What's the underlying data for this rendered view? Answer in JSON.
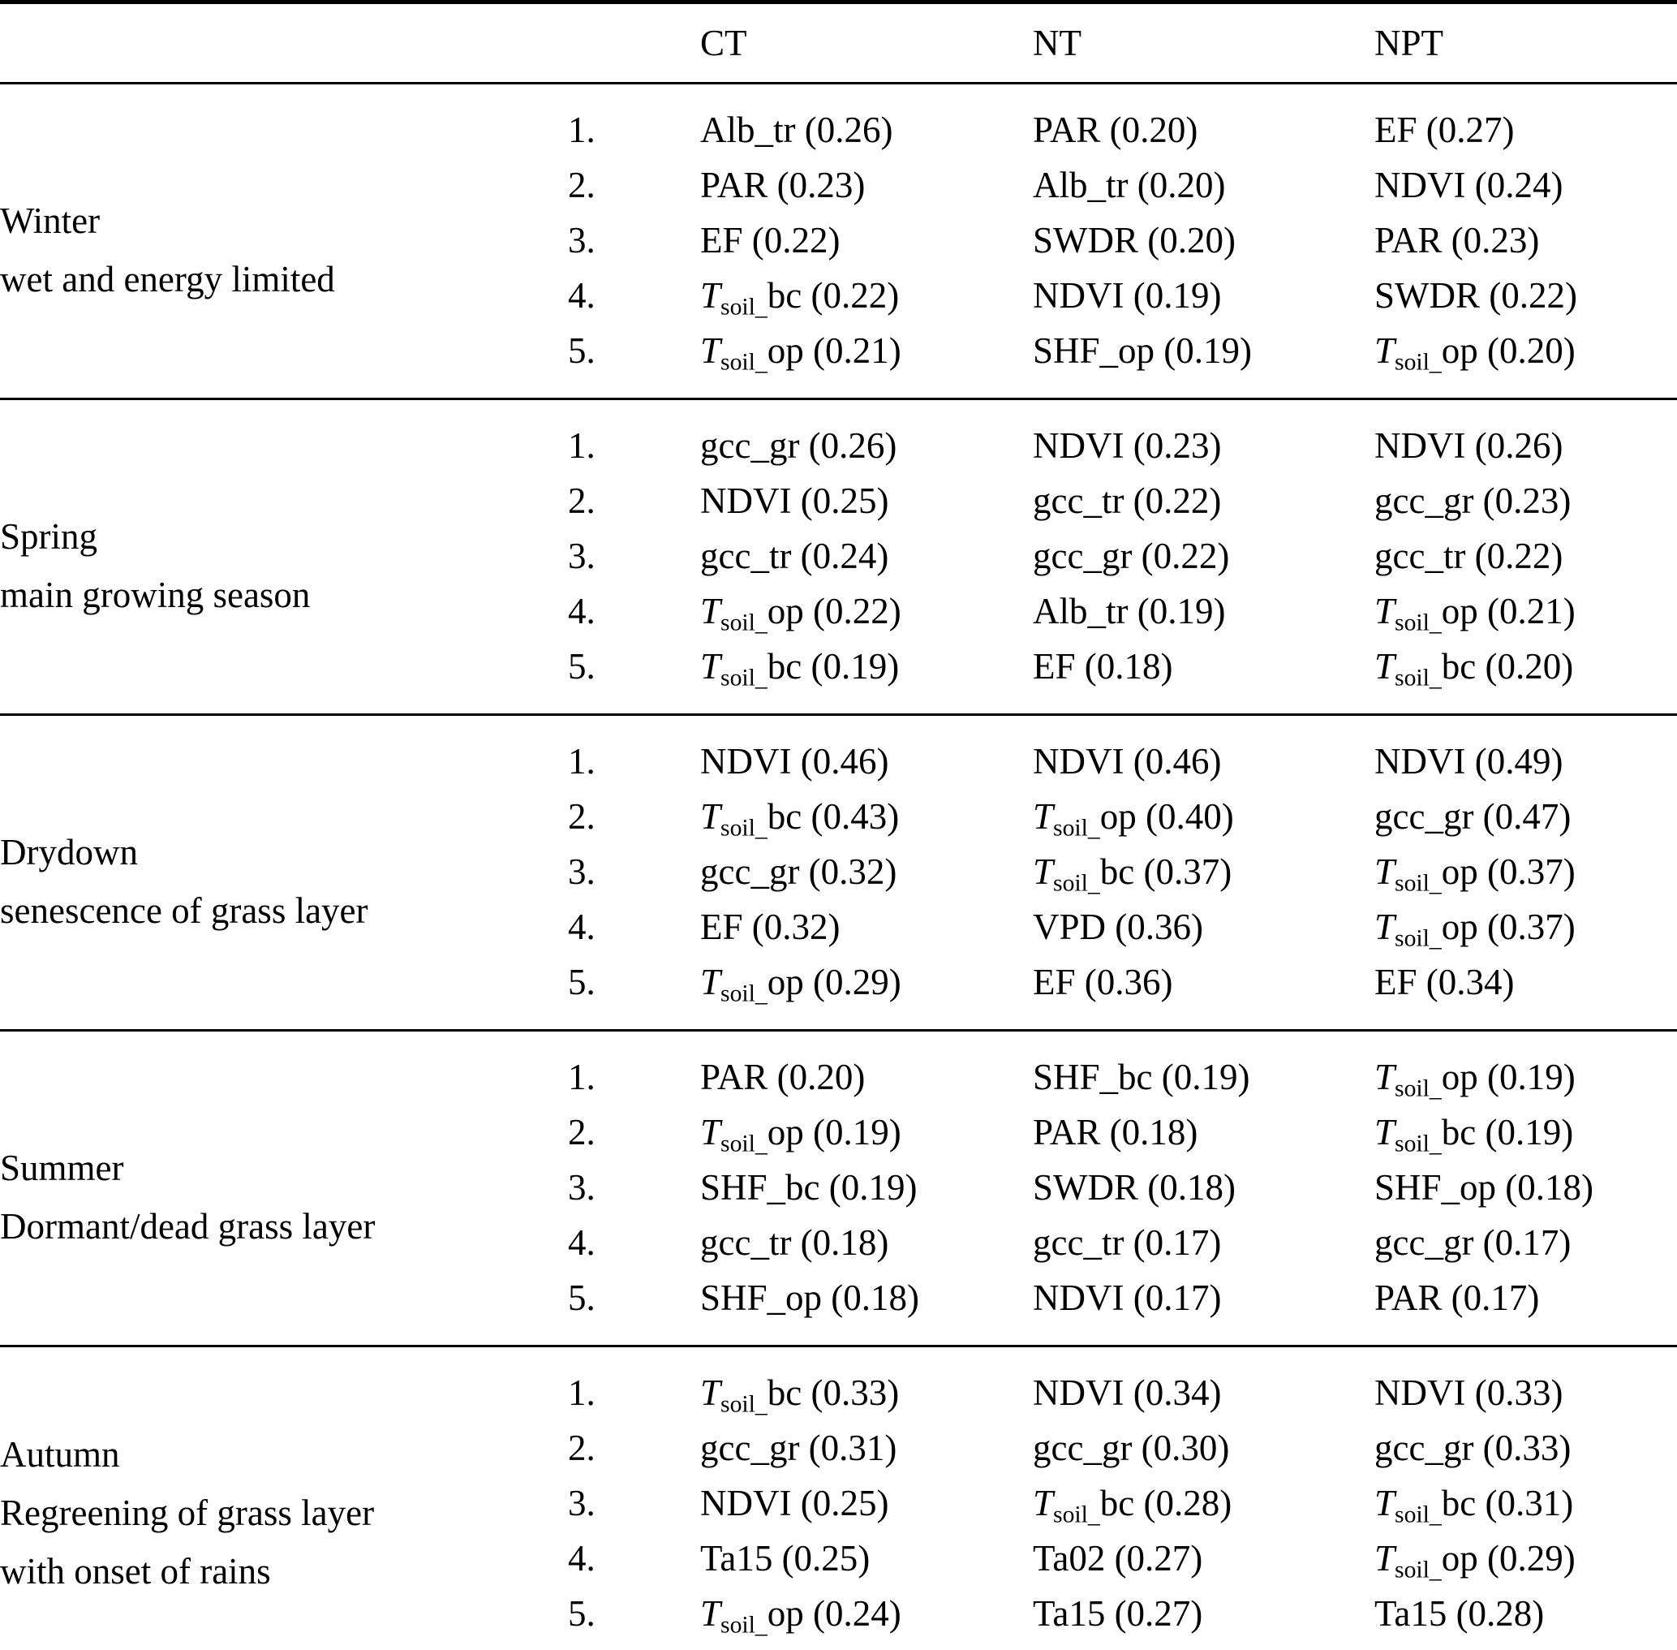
{
  "table": {
    "corner_label": "",
    "columns": [
      "CT",
      "NT",
      "NPT"
    ],
    "colors": {
      "text": "#000000",
      "background": "#ffffff",
      "rule": "#000000"
    },
    "sections": [
      {
        "season": "Winter",
        "description": [
          "wet and energy limited"
        ],
        "rows": [
          {
            "rank": "1.",
            "cells": [
              "Alb_tr (0.26)",
              "PAR (0.20)",
              "EF (0.27)"
            ]
          },
          {
            "rank": "2.",
            "cells": [
              "PAR (0.23)",
              "Alb_tr (0.20)",
              "NDVI (0.24)"
            ]
          },
          {
            "rank": "3.",
            "cells": [
              "EF (0.22)",
              "SWDR (0.20)",
              "PAR (0.23)"
            ]
          },
          {
            "rank": "4.",
            "cells": [
              "*T*_{soil_}bc (0.22)",
              "NDVI (0.19)",
              "SWDR (0.22)"
            ]
          },
          {
            "rank": "5.",
            "cells": [
              "*T*_{soil_}op (0.21)",
              "SHF_op (0.19)",
              "*T*_{soil_}op (0.20)"
            ]
          }
        ]
      },
      {
        "season": "Spring",
        "description": [
          "main growing season"
        ],
        "rows": [
          {
            "rank": "1.",
            "cells": [
              "gcc_gr (0.26)",
              "NDVI (0.23)",
              "NDVI (0.26)"
            ]
          },
          {
            "rank": "2.",
            "cells": [
              "NDVI (0.25)",
              "gcc_tr (0.22)",
              "gcc_gr (0.23)"
            ]
          },
          {
            "rank": "3.",
            "cells": [
              "gcc_tr (0.24)",
              "gcc_gr (0.22)",
              "gcc_tr (0.22)"
            ]
          },
          {
            "rank": "4.",
            "cells": [
              "*T*_{soil_}op (0.22)",
              "Alb_tr (0.19)",
              "*T*_{soil_}op (0.21)"
            ]
          },
          {
            "rank": "5.",
            "cells": [
              "*T*_{soil_}bc (0.19)",
              "EF (0.18)",
              "*T*_{soil_}bc (0.20)"
            ]
          }
        ]
      },
      {
        "season": "Drydown",
        "description": [
          "senescence of grass layer"
        ],
        "rows": [
          {
            "rank": "1.",
            "cells": [
              "NDVI (0.46)",
              "NDVI (0.46)",
              "NDVI (0.49)"
            ]
          },
          {
            "rank": "2.",
            "cells": [
              "*T*_{soil_}bc (0.43)",
              "*T*_{soil_}op (0.40)",
              "gcc_gr (0.47)"
            ]
          },
          {
            "rank": "3.",
            "cells": [
              "gcc_gr (0.32)",
              "*T*_{soil_}bc (0.37)",
              "*T*_{soil_}op (0.37)"
            ]
          },
          {
            "rank": "4.",
            "cells": [
              "EF (0.32)",
              "VPD (0.36)",
              "*T*_{soil_}op (0.37)"
            ]
          },
          {
            "rank": "5.",
            "cells": [
              "*T*_{soil_}op (0.29)",
              "EF (0.36)",
              "EF (0.34)"
            ]
          }
        ]
      },
      {
        "season": "Summer",
        "description": [
          "Dormant/dead grass layer"
        ],
        "rows": [
          {
            "rank": "1.",
            "cells": [
              "PAR (0.20)",
              "SHF_bc (0.19)",
              "*T*_{soil_}op (0.19)"
            ]
          },
          {
            "rank": "2.",
            "cells": [
              "*T*_{soil_}op (0.19)",
              "PAR (0.18)",
              "*T*_{soil_}bc (0.19)"
            ]
          },
          {
            "rank": "3.",
            "cells": [
              "SHF_bc (0.19)",
              "SWDR (0.18)",
              "SHF_op (0.18)"
            ]
          },
          {
            "rank": "4.",
            "cells": [
              "gcc_tr (0.18)",
              "gcc_tr (0.17)",
              "gcc_gr (0.17)"
            ]
          },
          {
            "rank": "5.",
            "cells": [
              "SHF_op (0.18)",
              "NDVI (0.17)",
              "PAR (0.17)"
            ]
          }
        ]
      },
      {
        "season": "Autumn",
        "description": [
          "Regreening of grass layer",
          "with onset of rains"
        ],
        "rows": [
          {
            "rank": "1.",
            "cells": [
              "*T*_{soil_}bc (0.33)",
              "NDVI (0.34)",
              "NDVI (0.33)"
            ]
          },
          {
            "rank": "2.",
            "cells": [
              "gcc_gr (0.31)",
              "gcc_gr (0.30)",
              "gcc_gr (0.33)"
            ]
          },
          {
            "rank": "3.",
            "cells": [
              "NDVI (0.25)",
              "*T*_{soil_}bc (0.28)",
              "*T*_{soil_}bc (0.31)"
            ]
          },
          {
            "rank": "4.",
            "cells": [
              "Ta15 (0.25)",
              "Ta02 (0.27)",
              "*T*_{soil_}op (0.29)"
            ]
          },
          {
            "rank": "5.",
            "cells": [
              "*T*_{soil_}op (0.24)",
              "Ta15 (0.27)",
              "Ta15 (0.28)"
            ]
          }
        ]
      }
    ]
  }
}
